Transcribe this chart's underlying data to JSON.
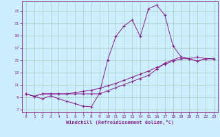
{
  "xlabel": "Windchill (Refroidissement éolien,°C)",
  "bg_color": "#cceeff",
  "line_color": "#882288",
  "grid_color": "#aaccbb",
  "xlim": [
    -0.5,
    23.5
  ],
  "ylim": [
    6.5,
    24.5
  ],
  "xticks": [
    0,
    1,
    2,
    3,
    4,
    5,
    6,
    7,
    8,
    9,
    10,
    11,
    12,
    13,
    14,
    15,
    16,
    17,
    18,
    19,
    20,
    21,
    22,
    23
  ],
  "yticks": [
    7,
    9,
    11,
    13,
    15,
    17,
    19,
    21,
    23
  ],
  "line1_x": [
    0,
    1,
    2,
    3,
    4,
    5,
    6,
    7,
    8,
    9,
    10,
    11,
    12,
    13,
    14,
    15,
    16,
    17,
    18,
    19,
    20,
    21,
    22,
    23
  ],
  "line1_y": [
    9.5,
    9.1,
    8.7,
    9.2,
    8.7,
    8.3,
    7.9,
    7.5,
    7.4,
    9.6,
    15.0,
    18.8,
    20.5,
    21.5,
    18.8,
    23.3,
    23.9,
    22.3,
    17.3,
    15.5,
    15.2,
    14.8,
    15.2,
    15.2
  ],
  "line2_x": [
    0,
    1,
    2,
    3,
    4,
    5,
    6,
    7,
    8,
    9,
    10,
    11,
    12,
    13,
    14,
    15,
    16,
    17,
    18,
    19,
    20,
    21,
    22,
    23
  ],
  "line2_y": [
    9.5,
    9.1,
    9.5,
    9.5,
    9.5,
    9.5,
    9.5,
    9.5,
    9.5,
    9.5,
    10.0,
    10.5,
    11.0,
    11.5,
    12.0,
    12.5,
    13.5,
    14.5,
    15.0,
    15.5,
    15.2,
    15.5,
    15.2,
    15.2
  ],
  "line3_x": [
    0,
    1,
    2,
    3,
    4,
    5,
    6,
    7,
    8,
    9,
    10,
    11,
    12,
    13,
    14,
    15,
    16,
    17,
    18,
    19,
    20,
    21,
    22,
    23
  ],
  "line3_y": [
    9.5,
    9.1,
    9.5,
    9.5,
    9.5,
    9.5,
    9.7,
    9.9,
    10.1,
    10.4,
    10.8,
    11.2,
    11.7,
    12.2,
    12.7,
    13.2,
    13.8,
    14.3,
    14.8,
    15.2,
    15.2,
    14.8,
    15.2,
    15.2
  ]
}
